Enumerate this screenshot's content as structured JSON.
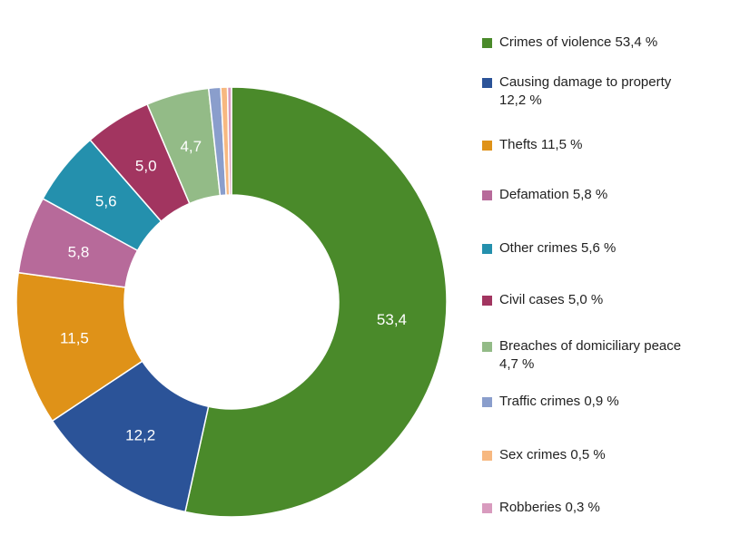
{
  "chart_data": {
    "type": "pie",
    "donut": true,
    "categories": [
      "Crimes of violence",
      "Causing damage to property",
      "Thefts",
      "Defamation",
      "Other crimes",
      "Civil cases",
      "Breaches of domiciliary peace",
      "Traffic crimes",
      "Sex crimes",
      "Robberies"
    ],
    "values": [
      53.4,
      12.2,
      11.5,
      5.8,
      5.6,
      5.0,
      4.7,
      0.9,
      0.5,
      0.3
    ],
    "data_labels": [
      "53,4",
      "12,2",
      "11,5",
      "5,8",
      "5,6",
      "5,0",
      "4,7",
      "",
      "",
      ""
    ],
    "colors": [
      "#4a8a2a",
      "#2b5398",
      "#df9218",
      "#b76a9a",
      "#2490ad",
      "#a23560",
      "#93bb87",
      "#8a9ecc",
      "#f7b880",
      "#d89bbe"
    ],
    "legend": [
      "Crimes of violence 53,4 %",
      "Causing damage to property 12,2 %",
      "Thefts 11,5 %",
      "Defamation 5,8 %",
      "Other crimes 5,6 %",
      "Civil cases 5,0 %",
      "Breaches of domiciliary peace 4,7 %",
      "Traffic crimes 0,9 %",
      "Sex crimes 0,5 %",
      "Robberies 0,3 %"
    ],
    "legend_position": "right"
  }
}
